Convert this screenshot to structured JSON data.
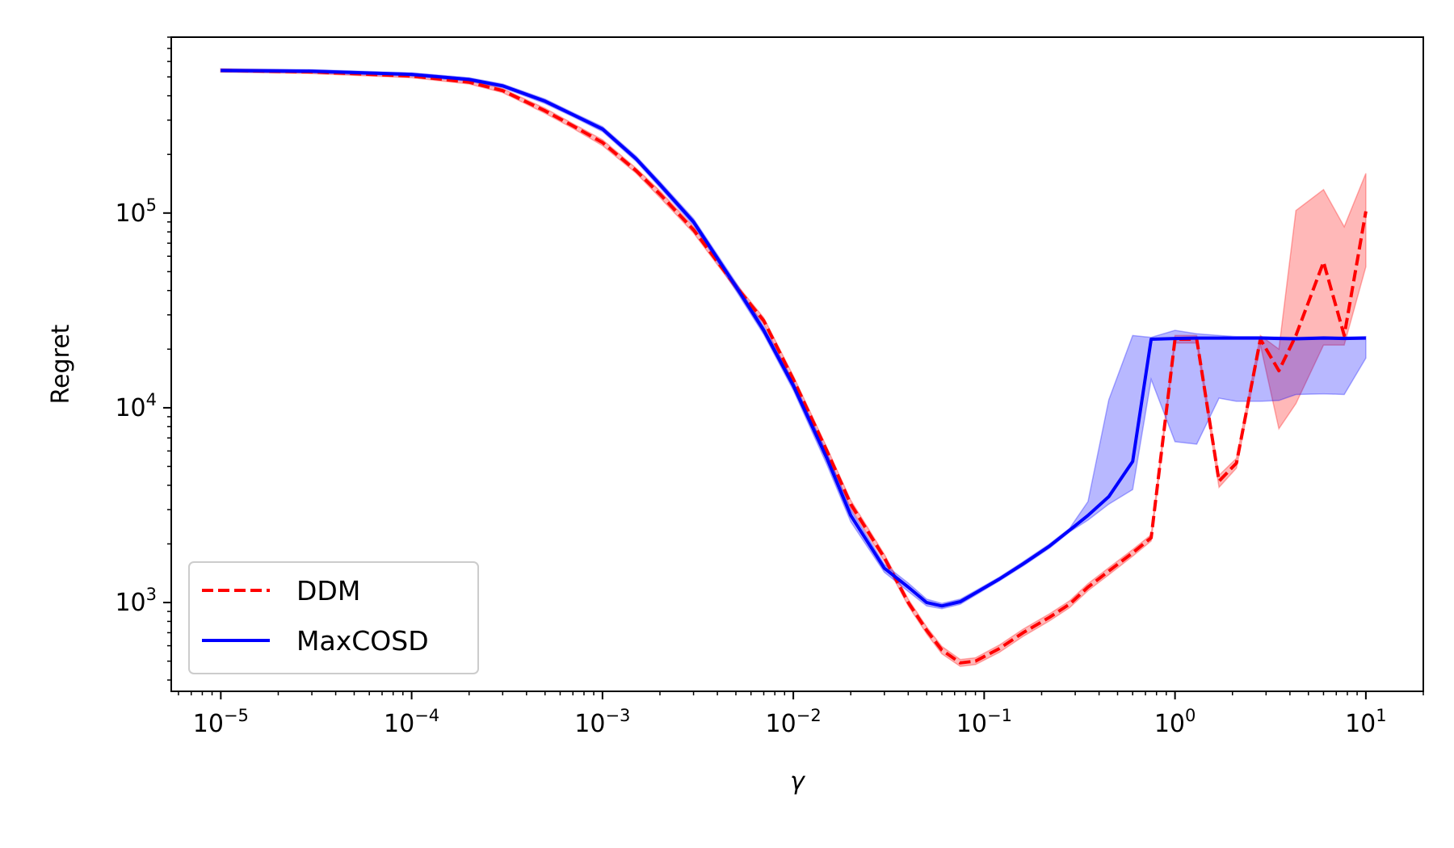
{
  "chart_data": {
    "type": "line",
    "title": "",
    "xlabel": "γ",
    "ylabel": "Regret",
    "xscale": "log",
    "yscale": "log",
    "xlim": [
      5.5e-06,
      20
    ],
    "ylim": [
      350,
      800000
    ],
    "x_ticks": [
      {
        "base": "10",
        "exp": "−5"
      },
      {
        "base": "10",
        "exp": "−4"
      },
      {
        "base": "10",
        "exp": "−3"
      },
      {
        "base": "10",
        "exp": "−2"
      },
      {
        "base": "10",
        "exp": "−1"
      },
      {
        "base": "10",
        "exp": "0"
      },
      {
        "base": "10",
        "exp": "1"
      }
    ],
    "y_ticks": [
      {
        "base": "10",
        "exp": "3"
      },
      {
        "base": "10",
        "exp": "4"
      },
      {
        "base": "10",
        "exp": "5"
      }
    ],
    "grid": false,
    "legend_position": "lower-left",
    "series": [
      {
        "name": "DDM",
        "color": "#ff0000",
        "style": "dashed",
        "x": [
          1e-05,
          3e-05,
          0.0001,
          0.0002,
          0.0003,
          0.0005,
          0.0007,
          0.001,
          0.0015,
          0.002,
          0.003,
          0.005,
          0.007,
          0.01,
          0.015,
          0.02,
          0.03,
          0.04,
          0.05,
          0.06,
          0.075,
          0.09,
          0.12,
          0.16,
          0.22,
          0.28,
          0.35,
          0.45,
          0.6,
          0.75,
          1.0,
          1.3,
          1.7,
          2.1,
          2.8,
          3.5,
          4.3,
          6.0,
          7.7,
          10.0
        ],
        "y": [
          540000,
          530000,
          505000,
          470000,
          425000,
          335000,
          280000,
          230000,
          165000,
          125000,
          82000,
          42000,
          28000,
          14000,
          6000,
          3200,
          1700,
          1000,
          720,
          570,
          490,
          500,
          580,
          700,
          840,
          980,
          1200,
          1450,
          1800,
          2150,
          22500,
          22500,
          4200,
          5200,
          22500,
          15500,
          23500,
          56000,
          23500,
          102000
        ],
        "band_lower": [
          530000,
          520000,
          495000,
          460000,
          415000,
          325000,
          272000,
          222000,
          160000,
          120000,
          79000,
          40500,
          27000,
          13400,
          5750,
          3050,
          1630,
          960,
          690,
          545,
          470,
          480,
          555,
          670,
          805,
          940,
          1150,
          1390,
          1730,
          2070,
          21500,
          21500,
          3900,
          4900,
          21000,
          7800,
          10500,
          21000,
          21000,
          53000
        ],
        "band_upper": [
          550000,
          540000,
          515000,
          480000,
          435000,
          345000,
          288000,
          238000,
          170000,
          130000,
          85000,
          43500,
          29000,
          14600,
          6250,
          3350,
          1770,
          1040,
          750,
          595,
          510,
          520,
          605,
          730,
          875,
          1020,
          1250,
          1510,
          1870,
          2230,
          23500,
          23500,
          4500,
          5500,
          23500,
          20000,
          103000,
          132000,
          85000,
          160000
        ]
      },
      {
        "name": "MaxCOSD",
        "color": "#0000ff",
        "style": "solid",
        "x": [
          1e-05,
          3e-05,
          0.0001,
          0.0002,
          0.0003,
          0.0005,
          0.0007,
          0.001,
          0.0015,
          0.002,
          0.003,
          0.005,
          0.007,
          0.01,
          0.015,
          0.02,
          0.03,
          0.04,
          0.05,
          0.06,
          0.075,
          0.09,
          0.12,
          0.16,
          0.22,
          0.28,
          0.35,
          0.45,
          0.6,
          0.75,
          1.0,
          1.3,
          1.7,
          2.1,
          2.8,
          3.5,
          4.3,
          6.0,
          7.7,
          10.0
        ],
        "y": [
          540000,
          535000,
          515000,
          485000,
          450000,
          375000,
          320000,
          270000,
          190000,
          140000,
          90000,
          42000,
          25000,
          13000,
          5500,
          2800,
          1500,
          1200,
          1000,
          960,
          1010,
          1120,
          1320,
          1580,
          1950,
          2350,
          2800,
          3500,
          5300,
          22500,
          22700,
          22800,
          22800,
          22800,
          22800,
          22700,
          22600,
          22800,
          22700,
          22800
        ],
        "band_lower": [
          530000,
          525000,
          505000,
          475000,
          440000,
          365000,
          312000,
          262000,
          184000,
          135000,
          86500,
          40000,
          23800,
          12300,
          5100,
          2600,
          1430,
          1140,
          960,
          930,
          980,
          1090,
          1290,
          1540,
          1900,
          2300,
          2650,
          3200,
          3800,
          14000,
          6700,
          6500,
          11200,
          10800,
          10800,
          10900,
          11700,
          11800,
          11700,
          18000
        ],
        "band_upper": [
          550000,
          545000,
          525000,
          495000,
          460000,
          385000,
          328000,
          278000,
          196000,
          145000,
          93500,
          44000,
          26200,
          13700,
          5900,
          3000,
          1570,
          1260,
          1040,
          990,
          1040,
          1150,
          1350,
          1620,
          2000,
          2400,
          3300,
          11000,
          23500,
          23000,
          25000,
          24000,
          23500,
          23200,
          23200,
          23100,
          23000,
          23200,
          23100,
          23200
        ]
      }
    ]
  }
}
